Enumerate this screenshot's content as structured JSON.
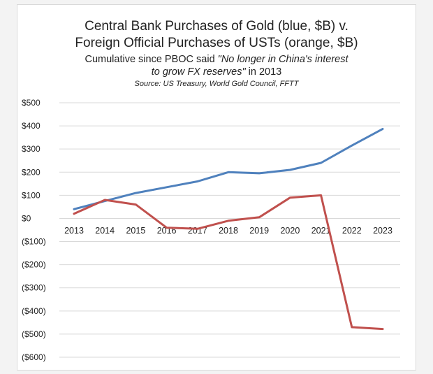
{
  "chart_data": {
    "type": "line",
    "title_line1": "Central Bank Purchases of Gold (blue, $B) v.",
    "title_line2": "Foreign Official Purchases of USTs (orange, $B)",
    "subtitle_line1_pre": "Cumulative since PBOC said ",
    "subtitle_line1_quote": "\"No longer in China's interest",
    "subtitle_line2_quote": "to grow FX reserves\"",
    "subtitle_line2_post": " in 2013",
    "source": "Source: US Treasury, World Gold Council, FFTT",
    "x": [
      "2013",
      "2014",
      "2015",
      "2016",
      "2017",
      "2018",
      "2019",
      "2020",
      "2021",
      "2022",
      "2023"
    ],
    "series": [
      {
        "color": "#4f81bd",
        "values": [
          40,
          75,
          110,
          135,
          160,
          200,
          195,
          210,
          240,
          315,
          387
        ]
      },
      {
        "color": "#c0504d",
        "values": [
          20,
          80,
          60,
          -40,
          -45,
          -10,
          5,
          90,
          100,
          -470,
          -478
        ]
      }
    ],
    "ylim": [
      -600,
      500
    ],
    "ytick_values": [
      500,
      400,
      300,
      200,
      100,
      0,
      -100,
      -200,
      -300,
      -400,
      -500,
      -600
    ],
    "ytick_labels": [
      "$500",
      "$400",
      "$300",
      "$200",
      "$100",
      "$0",
      "($100)",
      "($200)",
      "($300)",
      "($400)",
      "($500)",
      "($600)"
    ],
    "grid": true,
    "legend": "none"
  }
}
